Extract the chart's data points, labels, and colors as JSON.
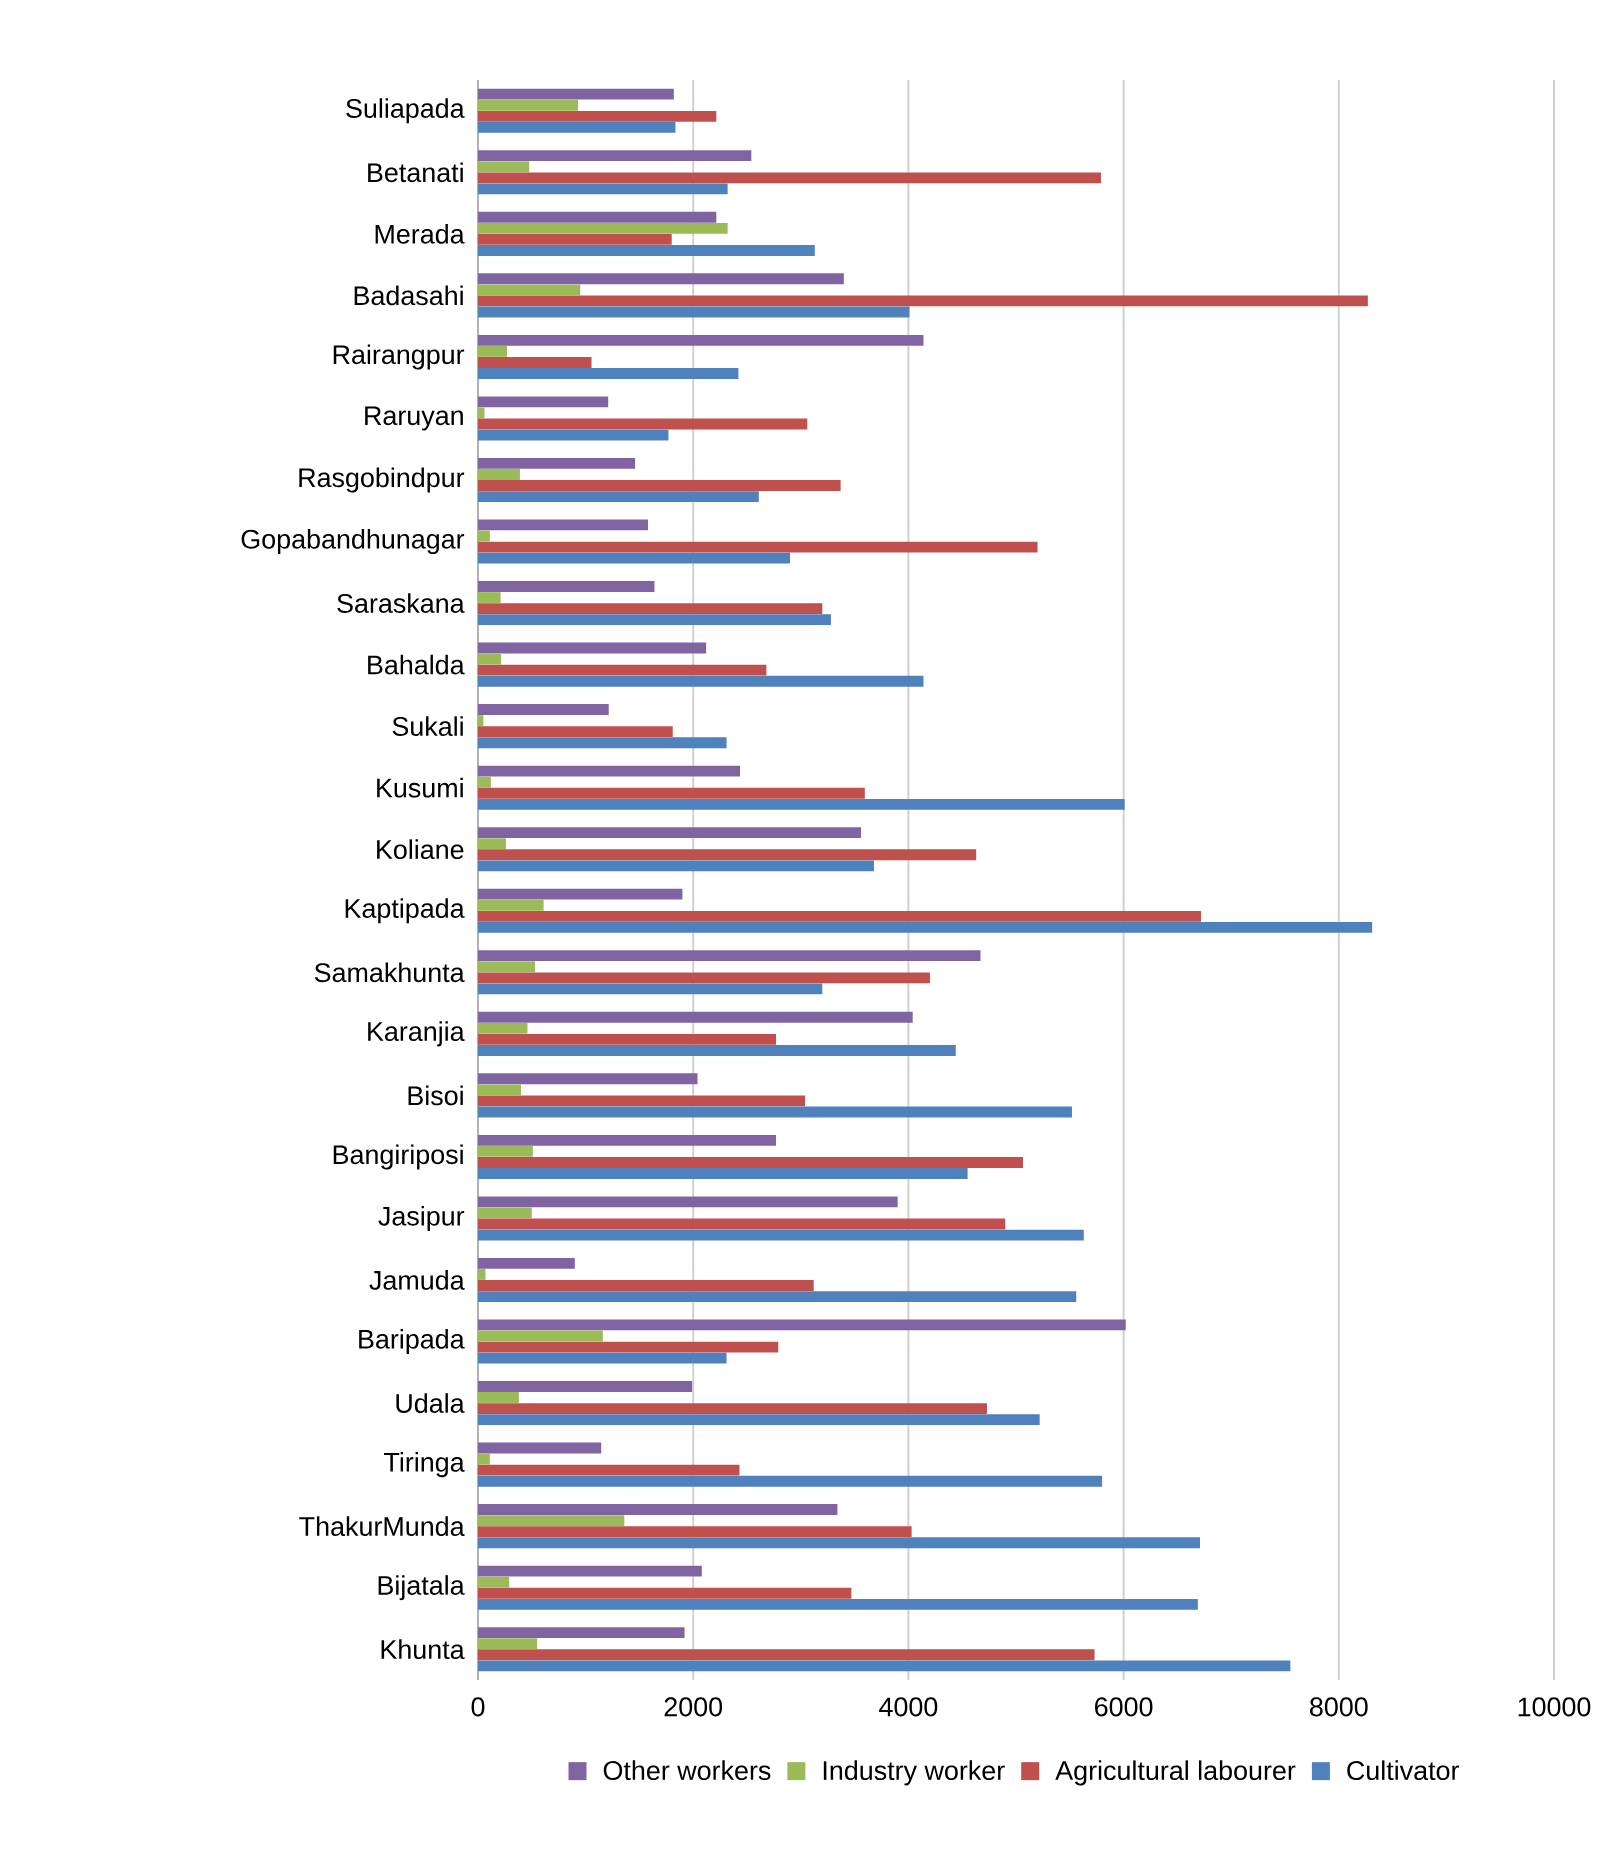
{
  "chart_data": {
    "type": "bar",
    "orientation": "horizontal",
    "categories": [
      "Suliapada",
      "Betanati",
      "Merada",
      "Badasahi",
      "Rairangpur",
      "Raruyan",
      "Rasgobindpur",
      "Gopabandhunagar",
      "Saraskana",
      "Bahalda",
      "Sukali",
      "Kusumi",
      "Koliane",
      "Kaptipada",
      "Samakhunta",
      "Karanjia",
      "Bisoi",
      "Bangiriposi",
      "Jasipur",
      "Jamuda",
      "Baripada",
      "Udala",
      "Tiringa",
      "ThakurMunda",
      "Bijatala",
      "Khunta"
    ],
    "series": [
      {
        "name": "Other workers",
        "color": "#8064a2",
        "values": [
          1820,
          2540,
          2215,
          3400,
          4140,
          1210,
          1460,
          1580,
          1640,
          2120,
          1215,
          2435,
          3560,
          1900,
          4670,
          4040,
          2040,
          2770,
          3900,
          900,
          6020,
          1990,
          1145,
          3340,
          2080,
          1920
        ]
      },
      {
        "name": "Industry worker",
        "color": "#9bbb59",
        "values": [
          930,
          476,
          2320,
          950,
          270,
          60,
          390,
          110,
          210,
          215,
          50,
          120,
          260,
          610,
          530,
          460,
          400,
          510,
          500,
          70,
          1160,
          380,
          110,
          1360,
          290,
          550
        ]
      },
      {
        "name": "Agricultural labourer",
        "color": "#c0504d",
        "values": [
          2215,
          5790,
          1800,
          8270,
          1055,
          3060,
          3370,
          5200,
          3200,
          2680,
          1810,
          3595,
          4630,
          6720,
          4200,
          2770,
          3040,
          5065,
          4900,
          3120,
          2790,
          4730,
          2430,
          4030,
          3470,
          5730
        ]
      },
      {
        "name": "Cultivator",
        "color": "#4f81bd",
        "values": [
          1835,
          2320,
          3130,
          4010,
          2420,
          1770,
          2610,
          2900,
          3280,
          4140,
          2310,
          6010,
          3680,
          8310,
          3200,
          4440,
          5520,
          4550,
          5630,
          5560,
          2310,
          5220,
          5800,
          6710,
          6690,
          7550
        ]
      }
    ],
    "xlim": [
      0,
      10000
    ],
    "xticks": [
      0,
      2000,
      4000,
      6000,
      8000,
      10000
    ],
    "grid": "x",
    "legend": "bottom"
  }
}
